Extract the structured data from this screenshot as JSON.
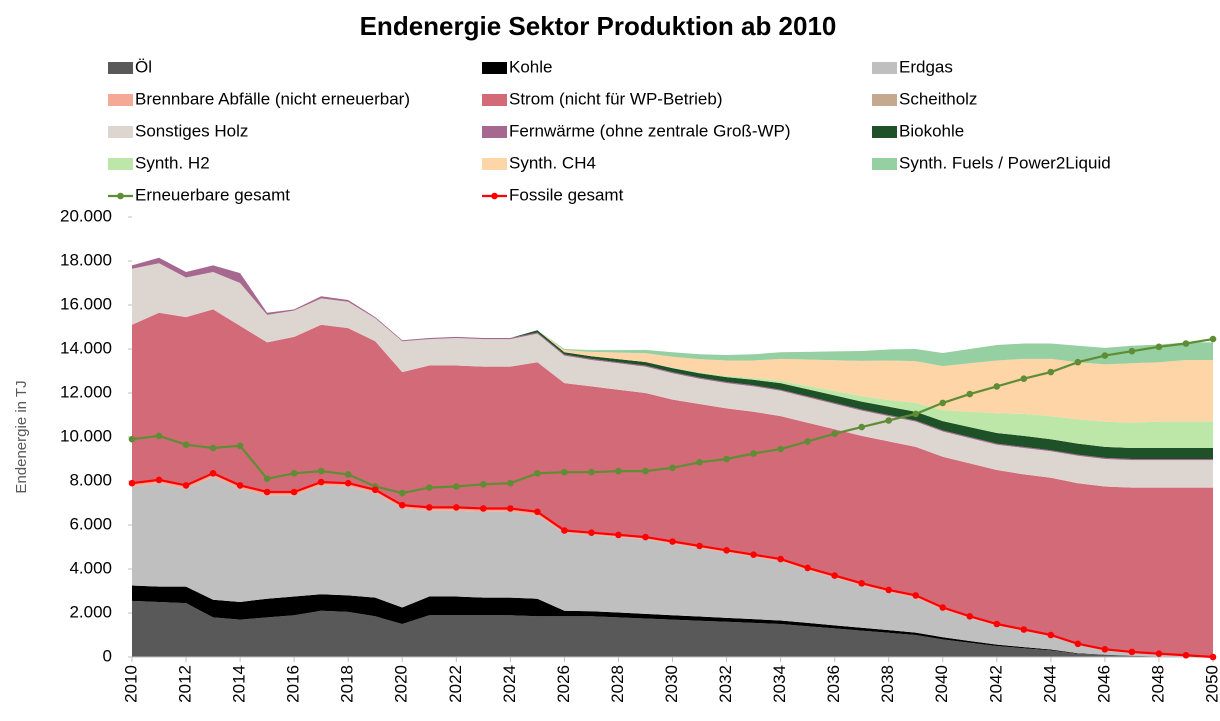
{
  "chart_data": {
    "type": "area",
    "title": "Endenergie Sektor Produktion  ab 2010",
    "y_label": "Endenergie in TJ",
    "x": [
      2010,
      2011,
      2012,
      2013,
      2014,
      2015,
      2016,
      2017,
      2018,
      2019,
      2020,
      2021,
      2022,
      2023,
      2024,
      2025,
      2026,
      2027,
      2028,
      2029,
      2030,
      2031,
      2032,
      2033,
      2034,
      2035,
      2036,
      2037,
      2038,
      2039,
      2040,
      2041,
      2042,
      2043,
      2044,
      2045,
      2046,
      2047,
      2048,
      2049,
      2050
    ],
    "xlim": [
      2010,
      2050
    ],
    "xticks": [
      2010,
      2012,
      2014,
      2016,
      2018,
      2020,
      2022,
      2024,
      2026,
      2028,
      2030,
      2032,
      2034,
      2036,
      2038,
      2040,
      2042,
      2044,
      2046,
      2048,
      2050
    ],
    "ylim": [
      0,
      20000
    ],
    "yticks": [
      0,
      {
        "value": 2000,
        "label": "2.000"
      },
      {
        "value": 4000,
        "label": "4.000"
      },
      {
        "value": 6000,
        "label": "6.000"
      },
      {
        "value": 8000,
        "label": "8.000"
      },
      {
        "value": 10000,
        "label": "10.000"
      },
      {
        "value": 12000,
        "label": "12.000"
      },
      {
        "value": 14000,
        "label": "14.000"
      },
      {
        "value": 16000,
        "label": "16.000"
      },
      {
        "value": 18000,
        "label": "18.000"
      },
      {
        "value": 20000,
        "label": "20.000"
      }
    ],
    "legend": "top",
    "series": [
      {
        "name": "Öl",
        "type": "area",
        "color": "#595959",
        "values": [
          2550,
          2500,
          2450,
          1800,
          1700,
          1800,
          1900,
          2100,
          2050,
          1850,
          1500,
          1900,
          1900,
          1900,
          1900,
          1850,
          1850,
          1850,
          1800,
          1750,
          1700,
          1650,
          1600,
          1550,
          1500,
          1400,
          1300,
          1200,
          1100,
          1000,
          800,
          650,
          500,
          400,
          300,
          150,
          100,
          50,
          30,
          20,
          0
        ]
      },
      {
        "name": "Kohle",
        "type": "area",
        "color": "#000000",
        "values": [
          700,
          700,
          750,
          800,
          800,
          850,
          850,
          750,
          750,
          850,
          750,
          850,
          850,
          800,
          800,
          800,
          250,
          230,
          220,
          210,
          200,
          190,
          180,
          170,
          160,
          150,
          140,
          130,
          120,
          110,
          100,
          80,
          60,
          50,
          40,
          20,
          10,
          5,
          0,
          0,
          0
        ]
      },
      {
        "name": "Erdgas",
        "type": "area",
        "color": "#bfbfbf",
        "values": [
          4500,
          4700,
          4450,
          5600,
          5150,
          4700,
          4600,
          4950,
          4950,
          4750,
          4500,
          3900,
          3900,
          3900,
          3900,
          3800,
          3550,
          3470,
          3430,
          3390,
          3250,
          3110,
          2970,
          2830,
          2690,
          2400,
          2160,
          1920,
          1730,
          1590,
          1250,
          1040,
          860,
          740,
          610,
          400,
          220,
          165,
          110,
          60,
          0
        ]
      },
      {
        "name": "Brennbare Abfälle (nicht erneuerbar)",
        "type": "area",
        "color": "#f4a896",
        "values": [
          150,
          150,
          150,
          150,
          150,
          150,
          150,
          150,
          150,
          150,
          150,
          150,
          150,
          150,
          150,
          150,
          100,
          100,
          100,
          100,
          100,
          100,
          100,
          100,
          100,
          100,
          100,
          100,
          100,
          100,
          100,
          80,
          80,
          60,
          50,
          30,
          20,
          10,
          10,
          0,
          0
        ]
      },
      {
        "name": "Strom (nicht für WP-Betrieb)",
        "type": "area",
        "color": "#d26a78",
        "values": [
          7200,
          7600,
          7650,
          7450,
          7250,
          6800,
          7050,
          7150,
          7050,
          6750,
          6050,
          6450,
          6450,
          6450,
          6450,
          6800,
          6700,
          6650,
          6600,
          6550,
          6450,
          6450,
          6450,
          6500,
          6500,
          6600,
          6650,
          6700,
          6750,
          6750,
          6850,
          6950,
          7000,
          7050,
          7150,
          7300,
          7400,
          7470,
          7550,
          7620,
          7700
        ]
      },
      {
        "name": "Scheitholz",
        "type": "area",
        "color": "#c4a98f",
        "values": [
          0,
          0,
          0,
          0,
          0,
          0,
          0,
          0,
          0,
          0,
          0,
          0,
          0,
          0,
          0,
          0,
          0,
          0,
          0,
          0,
          0,
          0,
          0,
          0,
          0,
          0,
          0,
          0,
          0,
          0,
          0,
          0,
          0,
          0,
          0,
          0,
          0,
          0,
          0,
          0,
          0
        ]
      },
      {
        "name": "Sonstiges Holz",
        "type": "area",
        "color": "#ddd6d0",
        "values": [
          2550,
          2250,
          1800,
          1700,
          1950,
          1250,
          1200,
          1200,
          1200,
          1050,
          1400,
          1200,
          1250,
          1250,
          1250,
          1300,
          1250,
          1200,
          1200,
          1200,
          1200,
          1150,
          1150,
          1150,
          1150,
          1150,
          1150,
          1150,
          1150,
          1150,
          1150,
          1150,
          1150,
          1200,
          1200,
          1250,
          1250,
          1250,
          1250,
          1250,
          1250
        ]
      },
      {
        "name": "Fernwärme (ohne zentrale Groß-WP)",
        "type": "area",
        "color": "#a6688f",
        "values": [
          150,
          250,
          250,
          300,
          450,
          100,
          50,
          100,
          80,
          50,
          50,
          50,
          50,
          50,
          50,
          50,
          50,
          50,
          50,
          50,
          50,
          50,
          50,
          50,
          50,
          50,
          50,
          50,
          50,
          50,
          50,
          50,
          50,
          50,
          50,
          50,
          50,
          50,
          50,
          50,
          50
        ]
      },
      {
        "name": "Biokohle",
        "type": "area",
        "color": "#1e5128",
        "values": [
          0,
          0,
          0,
          0,
          0,
          0,
          0,
          0,
          0,
          0,
          0,
          0,
          0,
          0,
          0,
          100,
          100,
          120,
          140,
          160,
          180,
          200,
          220,
          250,
          300,
          320,
          340,
          360,
          380,
          400,
          420,
          450,
          480,
          500,
          500,
          500,
          500,
          500,
          500,
          500,
          500
        ]
      },
      {
        "name": "Synth. H2",
        "type": "area",
        "color": "#bde7a8",
        "values": [
          0,
          0,
          0,
          0,
          0,
          0,
          0,
          0,
          0,
          0,
          0,
          0,
          0,
          0,
          0,
          0,
          0,
          0,
          0,
          0,
          20,
          40,
          60,
          80,
          100,
          150,
          200,
          250,
          300,
          400,
          500,
          700,
          900,
          1000,
          1050,
          1100,
          1150,
          1150,
          1200,
          1200,
          1200
        ]
      },
      {
        "name": "Synth. CH4",
        "type": "area",
        "color": "#fdd5a6",
        "values": [
          0,
          0,
          0,
          0,
          0,
          0,
          0,
          0,
          0,
          0,
          0,
          0,
          0,
          0,
          0,
          0,
          100,
          200,
          300,
          400,
          500,
          600,
          700,
          800,
          1000,
          1200,
          1400,
          1600,
          1800,
          1900,
          2000,
          2200,
          2400,
          2500,
          2600,
          2600,
          2600,
          2700,
          2700,
          2800,
          2800
        ]
      },
      {
        "name": "Synth. Fuels / Power2Liquid",
        "type": "area",
        "color": "#95cfa2",
        "values": [
          0,
          0,
          0,
          0,
          0,
          0,
          0,
          0,
          0,
          0,
          0,
          0,
          0,
          0,
          0,
          0,
          50,
          80,
          110,
          150,
          200,
          220,
          250,
          280,
          300,
          350,
          400,
          450,
          500,
          550,
          600,
          650,
          700,
          700,
          700,
          750,
          750,
          800,
          800,
          800,
          800
        ]
      },
      {
        "name": "Erneuerbare gesamt",
        "type": "line",
        "color": "#5f8d35",
        "values": [
          9900,
          10050,
          9650,
          9500,
          9600,
          8100,
          8350,
          8450,
          8300,
          7750,
          7450,
          7700,
          7750,
          7850,
          7900,
          8350,
          8400,
          8400,
          8450,
          8450,
          8600,
          8850,
          9000,
          9250,
          9450,
          9800,
          10150,
          10450,
          10750,
          11050,
          11550,
          11950,
          12300,
          12650,
          12950,
          13400,
          13700,
          13900,
          14100,
          14250,
          14450
        ]
      },
      {
        "name": "Fossile gesamt",
        "type": "line",
        "color": "#ff0000",
        "values": [
          7900,
          8050,
          7800,
          8350,
          7800,
          7500,
          7500,
          7950,
          7900,
          7600,
          6900,
          6800,
          6800,
          6750,
          6750,
          6600,
          5750,
          5650,
          5550,
          5450,
          5250,
          5050,
          4850,
          4650,
          4450,
          4050,
          3700,
          3350,
          3050,
          2800,
          2250,
          1850,
          1500,
          1250,
          1000,
          600,
          350,
          230,
          150,
          80,
          0
        ]
      }
    ]
  }
}
